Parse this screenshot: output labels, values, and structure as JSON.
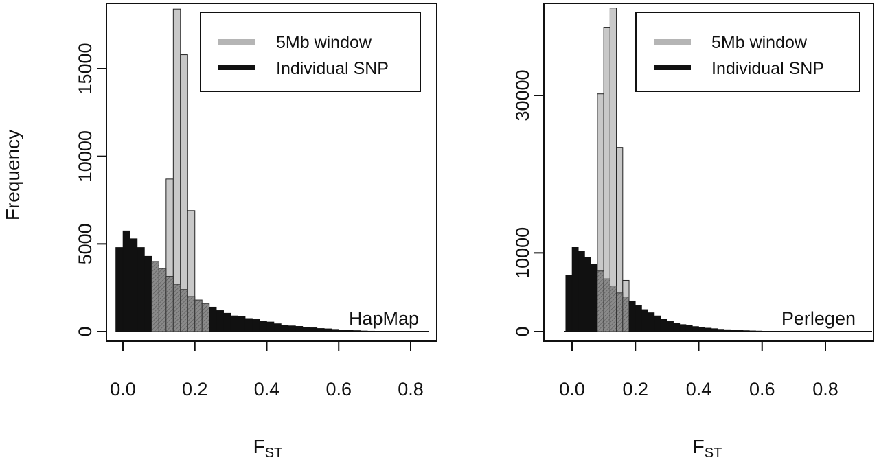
{
  "figure": {
    "ylabel": "Frequency",
    "xlabel_main": "F",
    "xlabel_sub": "ST"
  },
  "legend": {
    "window_label": "5Mb window",
    "snp_label": "Individual SNP"
  },
  "colors": {
    "window_fill": "#c8c8c8",
    "snp_fill": "#111111",
    "overlap_fill": "#8a8a8a",
    "axis": "#111111"
  },
  "chart_data": [
    {
      "type": "bar",
      "panel_label": "HapMap",
      "xlim": [
        -0.05,
        0.85
      ],
      "ylim": [
        0,
        18800
      ],
      "xticks": [
        0.0,
        0.2,
        0.4,
        0.6,
        0.8
      ],
      "xtick_labels": [
        "0.0",
        "0.2",
        "0.4",
        "0.6",
        "0.8"
      ],
      "yticks": [
        0,
        5000,
        10000,
        15000
      ],
      "ytick_labels": [
        "0",
        "5000",
        "10000",
        "15000"
      ],
      "bin_width": 0.02,
      "series": [
        {
          "name": "Individual SNP",
          "bin_start": -0.02,
          "values": [
            4800,
            5750,
            5300,
            4800,
            4300,
            4000,
            3600,
            3150,
            2700,
            2400,
            2000,
            1800,
            1600,
            1400,
            1200,
            1050,
            900,
            850,
            750,
            700,
            600,
            550,
            450,
            380,
            330,
            300,
            260,
            220,
            180,
            160,
            130,
            100,
            80,
            60,
            40,
            30,
            20,
            15,
            10,
            5
          ]
        },
        {
          "name": "5Mb window",
          "bin_start": 0.08,
          "values": [
            800,
            1800,
            8700,
            18400,
            15800,
            6900,
            1600,
            500
          ]
        }
      ]
    },
    {
      "type": "bar",
      "panel_label": "Perlegen",
      "xlim": [
        -0.05,
        0.92
      ],
      "ylim": [
        0,
        40500
      ],
      "xticks": [
        0.0,
        0.2,
        0.4,
        0.6,
        0.8
      ],
      "xtick_labels": [
        "0.0",
        "0.2",
        "0.4",
        "0.6",
        "0.8"
      ],
      "yticks": [
        0,
        10000,
        30000
      ],
      "ytick_labels": [
        "0",
        "10000",
        "30000"
      ],
      "bin_width": 0.02,
      "series": [
        {
          "name": "Individual SNP",
          "bin_start": -0.02,
          "values": [
            7200,
            10700,
            10200,
            9400,
            8600,
            7700,
            6700,
            5800,
            4900,
            4400,
            3900,
            3300,
            2800,
            2400,
            2000,
            1600,
            1300,
            1100,
            900,
            800,
            650,
            550,
            450,
            380,
            300,
            250,
            200,
            160,
            130,
            100,
            80,
            60,
            50,
            40,
            30,
            20,
            15,
            10,
            8,
            5,
            3
          ]
        },
        {
          "name": "5Mb window",
          "bin_start": 0.08,
          "values": [
            30200,
            38600,
            41100,
            23400,
            6500
          ]
        }
      ]
    }
  ]
}
